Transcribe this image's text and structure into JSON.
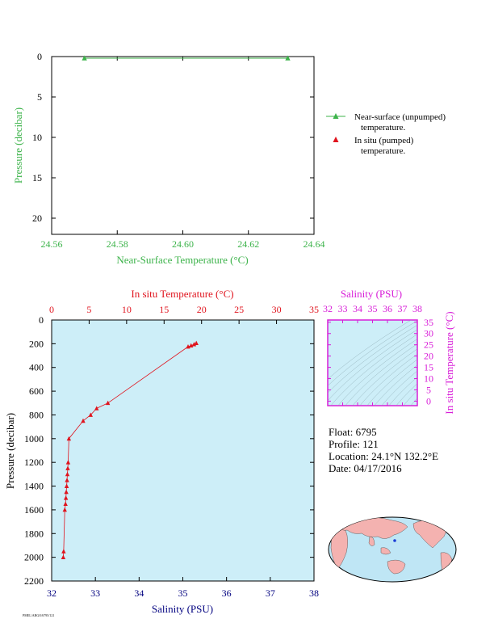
{
  "colors": {
    "green": "#3cb34a",
    "red": "#e0141e",
    "navy": "#00007f",
    "magenta": "#d81ed8",
    "plot_bg": "#cdeef8",
    "ocean": "#bfe6f5",
    "land": "#f4b2b0"
  },
  "legend": {
    "line1a": "Near-surface (unpumped)",
    "line1b": "temperature.",
    "line2a": "In situ (pumped)",
    "line2b": "temperature."
  },
  "info": {
    "float": "Float:  6795",
    "profile": "Profile:  121",
    "location": "Location:  24.1°N  132.2°E",
    "date": "Date:  04/17/2016"
  },
  "footer": "PMEL/ARGO/6795/121",
  "chart_data": [
    {
      "type": "line",
      "series": [
        {
          "name": "Near-surface (unpumped) temperature.",
          "x": [
            24.57,
            24.632
          ],
          "y": [
            0.2,
            0.2
          ]
        }
      ],
      "xlabel": "Near-Surface Temperature (°C)",
      "ylabel": "Pressure (decibar)",
      "xlim": [
        24.56,
        24.64
      ],
      "ylim": [
        22,
        0
      ],
      "xticks": [
        "24.56",
        "24.58",
        "24.60",
        "24.62",
        "24.64"
      ],
      "yticks": [
        "0",
        "5",
        "10",
        "15",
        "20"
      ]
    },
    {
      "type": "line",
      "series": [
        {
          "name": "In situ (pumped) temperature.",
          "temperature": [
            19.3,
            19.0,
            18.6,
            18.2,
            7.5,
            6.0,
            5.2,
            4.2,
            2.3,
            2.2,
            2.15,
            2.1,
            2.05,
            2.0,
            1.95,
            1.9,
            1.85,
            1.75,
            1.6,
            1.55
          ],
          "pressure": [
            195,
            205,
            215,
            225,
            700,
            745,
            800,
            850,
            1000,
            1200,
            1250,
            1300,
            1350,
            1400,
            1450,
            1500,
            1550,
            1600,
            1950,
            2000
          ]
        }
      ],
      "top_xlabel": "In situ Temperature (°C)",
      "bottom_xlabel": "Salinity (PSU)",
      "ylabel": "Pressure (decibar)",
      "top_xlim": [
        0,
        35
      ],
      "bottom_xlim": [
        32,
        38
      ],
      "ylim": [
        2200,
        0
      ],
      "top_xticks": [
        "0",
        "5",
        "10",
        "15",
        "20",
        "25",
        "30",
        "35"
      ],
      "bottom_xticks": [
        "32",
        "33",
        "34",
        "35",
        "36",
        "37",
        "38"
      ],
      "yticks": [
        "0",
        "200",
        "400",
        "600",
        "800",
        "1000",
        "1200",
        "1400",
        "1600",
        "1800",
        "2000",
        "2200"
      ]
    },
    {
      "type": "scatter",
      "xlabel": "Salinity (PSU)",
      "ylabel": "In situ Temperature (°C)",
      "xlim": [
        32,
        38
      ],
      "ylim": [
        -2,
        36
      ],
      "xticks": [
        "32",
        "33",
        "34",
        "35",
        "36",
        "37",
        "38"
      ],
      "yticks": [
        "0",
        "5",
        "10",
        "15",
        "20",
        "25",
        "30",
        "35"
      ],
      "points": []
    }
  ],
  "map": {
    "marker": {
      "lat": 24.1,
      "lon": 132.2
    }
  }
}
